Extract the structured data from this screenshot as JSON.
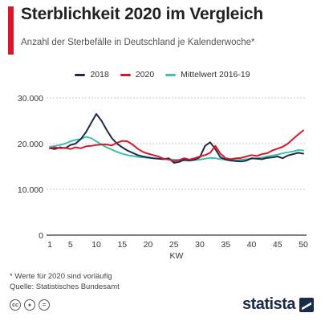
{
  "header": {
    "title": "Sterblichkeit 2020 im Vergleich",
    "subtitle": "Anzahl der Sterbefälle in Deutschland je Kalenderwoche*"
  },
  "colors": {
    "accent": "#d7182a",
    "series_2018": "#1a2b4a",
    "series_2020": "#d7182a",
    "series_avg": "#3fbfb0",
    "grid": "#bbbbbb"
  },
  "footer": {
    "footnote": "* Werte für 2020 sind vorläufig",
    "source": "Quelle: Statistisches Bundesamt",
    "brand": "statista",
    "license_icons": [
      "cc-icon",
      "by-icon",
      "equals-icon"
    ]
  },
  "chart_data": {
    "type": "line",
    "xlabel": "KW",
    "ylabel": "",
    "xlim": [
      1,
      50
    ],
    "ylim": [
      0,
      30000
    ],
    "x_ticks": [
      1,
      5,
      10,
      15,
      20,
      25,
      30,
      35,
      40,
      45,
      50
    ],
    "y_ticks": [
      0,
      10000,
      20000,
      30000
    ],
    "y_tick_labels": [
      "0",
      "10.000",
      "20.000",
      "30.000"
    ],
    "grid": true,
    "legend_position": "top-center",
    "x": [
      1,
      2,
      3,
      4,
      5,
      6,
      7,
      8,
      9,
      10,
      11,
      12,
      13,
      14,
      15,
      16,
      17,
      18,
      19,
      20,
      21,
      22,
      23,
      24,
      25,
      26,
      27,
      28,
      29,
      30,
      31,
      32,
      33,
      34,
      35,
      36,
      37,
      38,
      39,
      40,
      41,
      42,
      43,
      44,
      45,
      46,
      47,
      48,
      49,
      50
    ],
    "series": [
      {
        "name": "2018",
        "values": [
          19000,
          18800,
          19200,
          19000,
          19700,
          20000,
          21000,
          22500,
          24500,
          26500,
          25000,
          23000,
          21200,
          20000,
          19200,
          18500,
          18000,
          17500,
          17200,
          17000,
          16800,
          16700,
          16600,
          16800,
          15800,
          16000,
          16500,
          16300,
          16500,
          17000,
          19500,
          20300,
          18800,
          17000,
          16500,
          16300,
          16200,
          16100,
          16300,
          16800,
          16700,
          16600,
          16900,
          17000,
          17200,
          16800,
          17400,
          17700,
          18000,
          17800
        ],
        "color": "#1a2b4a"
      },
      {
        "name": "2020",
        "values": [
          19000,
          19200,
          19000,
          19100,
          18800,
          19200,
          19000,
          19400,
          19500,
          19700,
          19800,
          19800,
          19600,
          20200,
          20600,
          20500,
          19800,
          18900,
          18200,
          17800,
          17500,
          17200,
          16700,
          16500,
          16200,
          16400,
          16800,
          16500,
          16800,
          17200,
          17500,
          18000,
          19500,
          17800,
          16800,
          16600,
          16800,
          16900,
          17200,
          17500,
          17300,
          17700,
          17900,
          18500,
          18900,
          19300,
          20000,
          21000,
          22000,
          22900
        ],
        "color": "#d7182a"
      },
      {
        "name": "Mittelwert 2016-19",
        "values": [
          19300,
          19500,
          19700,
          20000,
          20500,
          20800,
          21000,
          21500,
          21200,
          20500,
          19800,
          19200,
          18700,
          18200,
          17800,
          17500,
          17300,
          17100,
          17000,
          16900,
          16800,
          16700,
          16600,
          16600,
          16500,
          16400,
          16300,
          16300,
          16400,
          16500,
          16700,
          16900,
          16800,
          16600,
          16500,
          16400,
          16400,
          16500,
          16600,
          16700,
          16800,
          17000,
          17200,
          17400,
          17600,
          17900,
          18100,
          18300,
          18600,
          18500
        ],
        "color": "#3fbfb0"
      }
    ]
  }
}
